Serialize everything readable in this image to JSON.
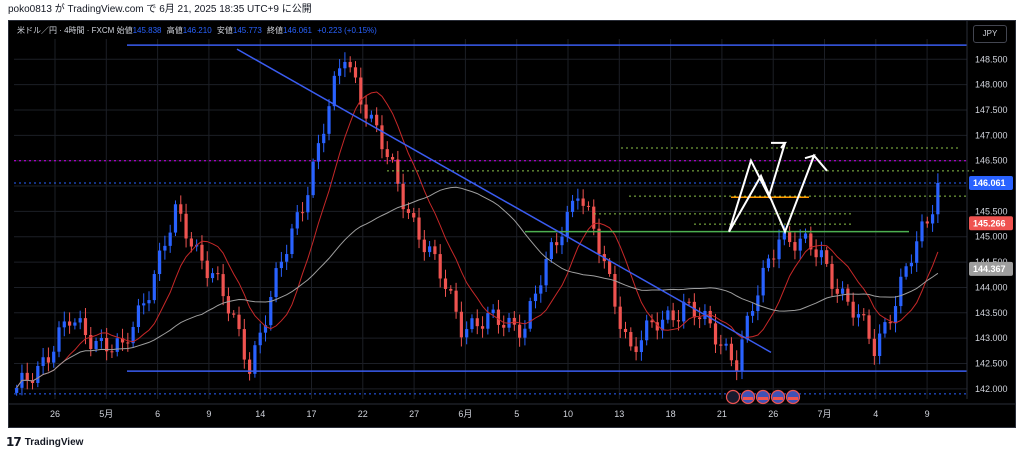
{
  "header": {
    "caption": "poko0813 が TradingView.com で 6月 21, 2025 18:35 UTC+9 に公開"
  },
  "legend": {
    "symbol": "米ドル／円 · 4時間 · FXCM",
    "open_label": "始値",
    "open": "145.838",
    "high_label": "高値",
    "high": "146.210",
    "low_label": "安値",
    "low": "145.773",
    "close_label": "終値",
    "close": "146.061",
    "change": "+0.223 (+0.15%)"
  },
  "currency_button": "JPY",
  "footer": {
    "brand": "TradingView",
    "logo": "17"
  },
  "colors": {
    "background": "#000000",
    "up": "#2962ff",
    "down": "#ef5350",
    "trendline": "#3a5cf0",
    "ma_fast": "#c62828",
    "ma_slow": "#9e9e9e",
    "resistance": "#4caf50",
    "pivot": "#ff9800",
    "target": "#ffffff",
    "dotted_green": "#8bc34a",
    "dotted_purple": "#d500f9"
  },
  "chart_data": {
    "type": "candlestick",
    "y_axis": {
      "ticks": [
        "148.500",
        "148.000",
        "147.500",
        "147.000",
        "146.500",
        "146.000",
        "145.500",
        "145.000",
        "144.500",
        "144.000",
        "143.500",
        "143.000",
        "142.500",
        "142.000"
      ],
      "range": [
        141.8,
        148.9
      ]
    },
    "x_axis": {
      "ticks": [
        "26",
        "5月",
        "6",
        "9",
        "14",
        "17",
        "22",
        "27",
        "6月",
        "5",
        "10",
        "13",
        "18",
        "21",
        "26",
        "7月",
        "4",
        "9"
      ]
    },
    "price_labels": [
      {
        "value": 146.061,
        "text": "146.061",
        "color": "#2962ff"
      },
      {
        "value": 145.266,
        "text": "145.266",
        "color": "#ef5350"
      },
      {
        "value": 144.367,
        "text": "144.367",
        "color": "#9e9e9e"
      }
    ],
    "anchors": {
      "x_index": [
        0,
        10,
        20,
        30,
        37,
        44,
        54,
        62,
        72,
        84,
        96,
        106,
        116,
        126,
        136,
        144,
        152,
        162,
        172,
        174
      ],
      "y_value": [
        141.9,
        143.3,
        142.7,
        145.4,
        144.3,
        142.5,
        145.7,
        148.6,
        146.0,
        143.3,
        143.3,
        146.0,
        142.8,
        143.7,
        142.6,
        145.1,
        144.6,
        142.8,
        145.3,
        146.06
      ]
    },
    "events": [
      "lightning",
      "US",
      "US",
      "US",
      "US"
    ]
  }
}
